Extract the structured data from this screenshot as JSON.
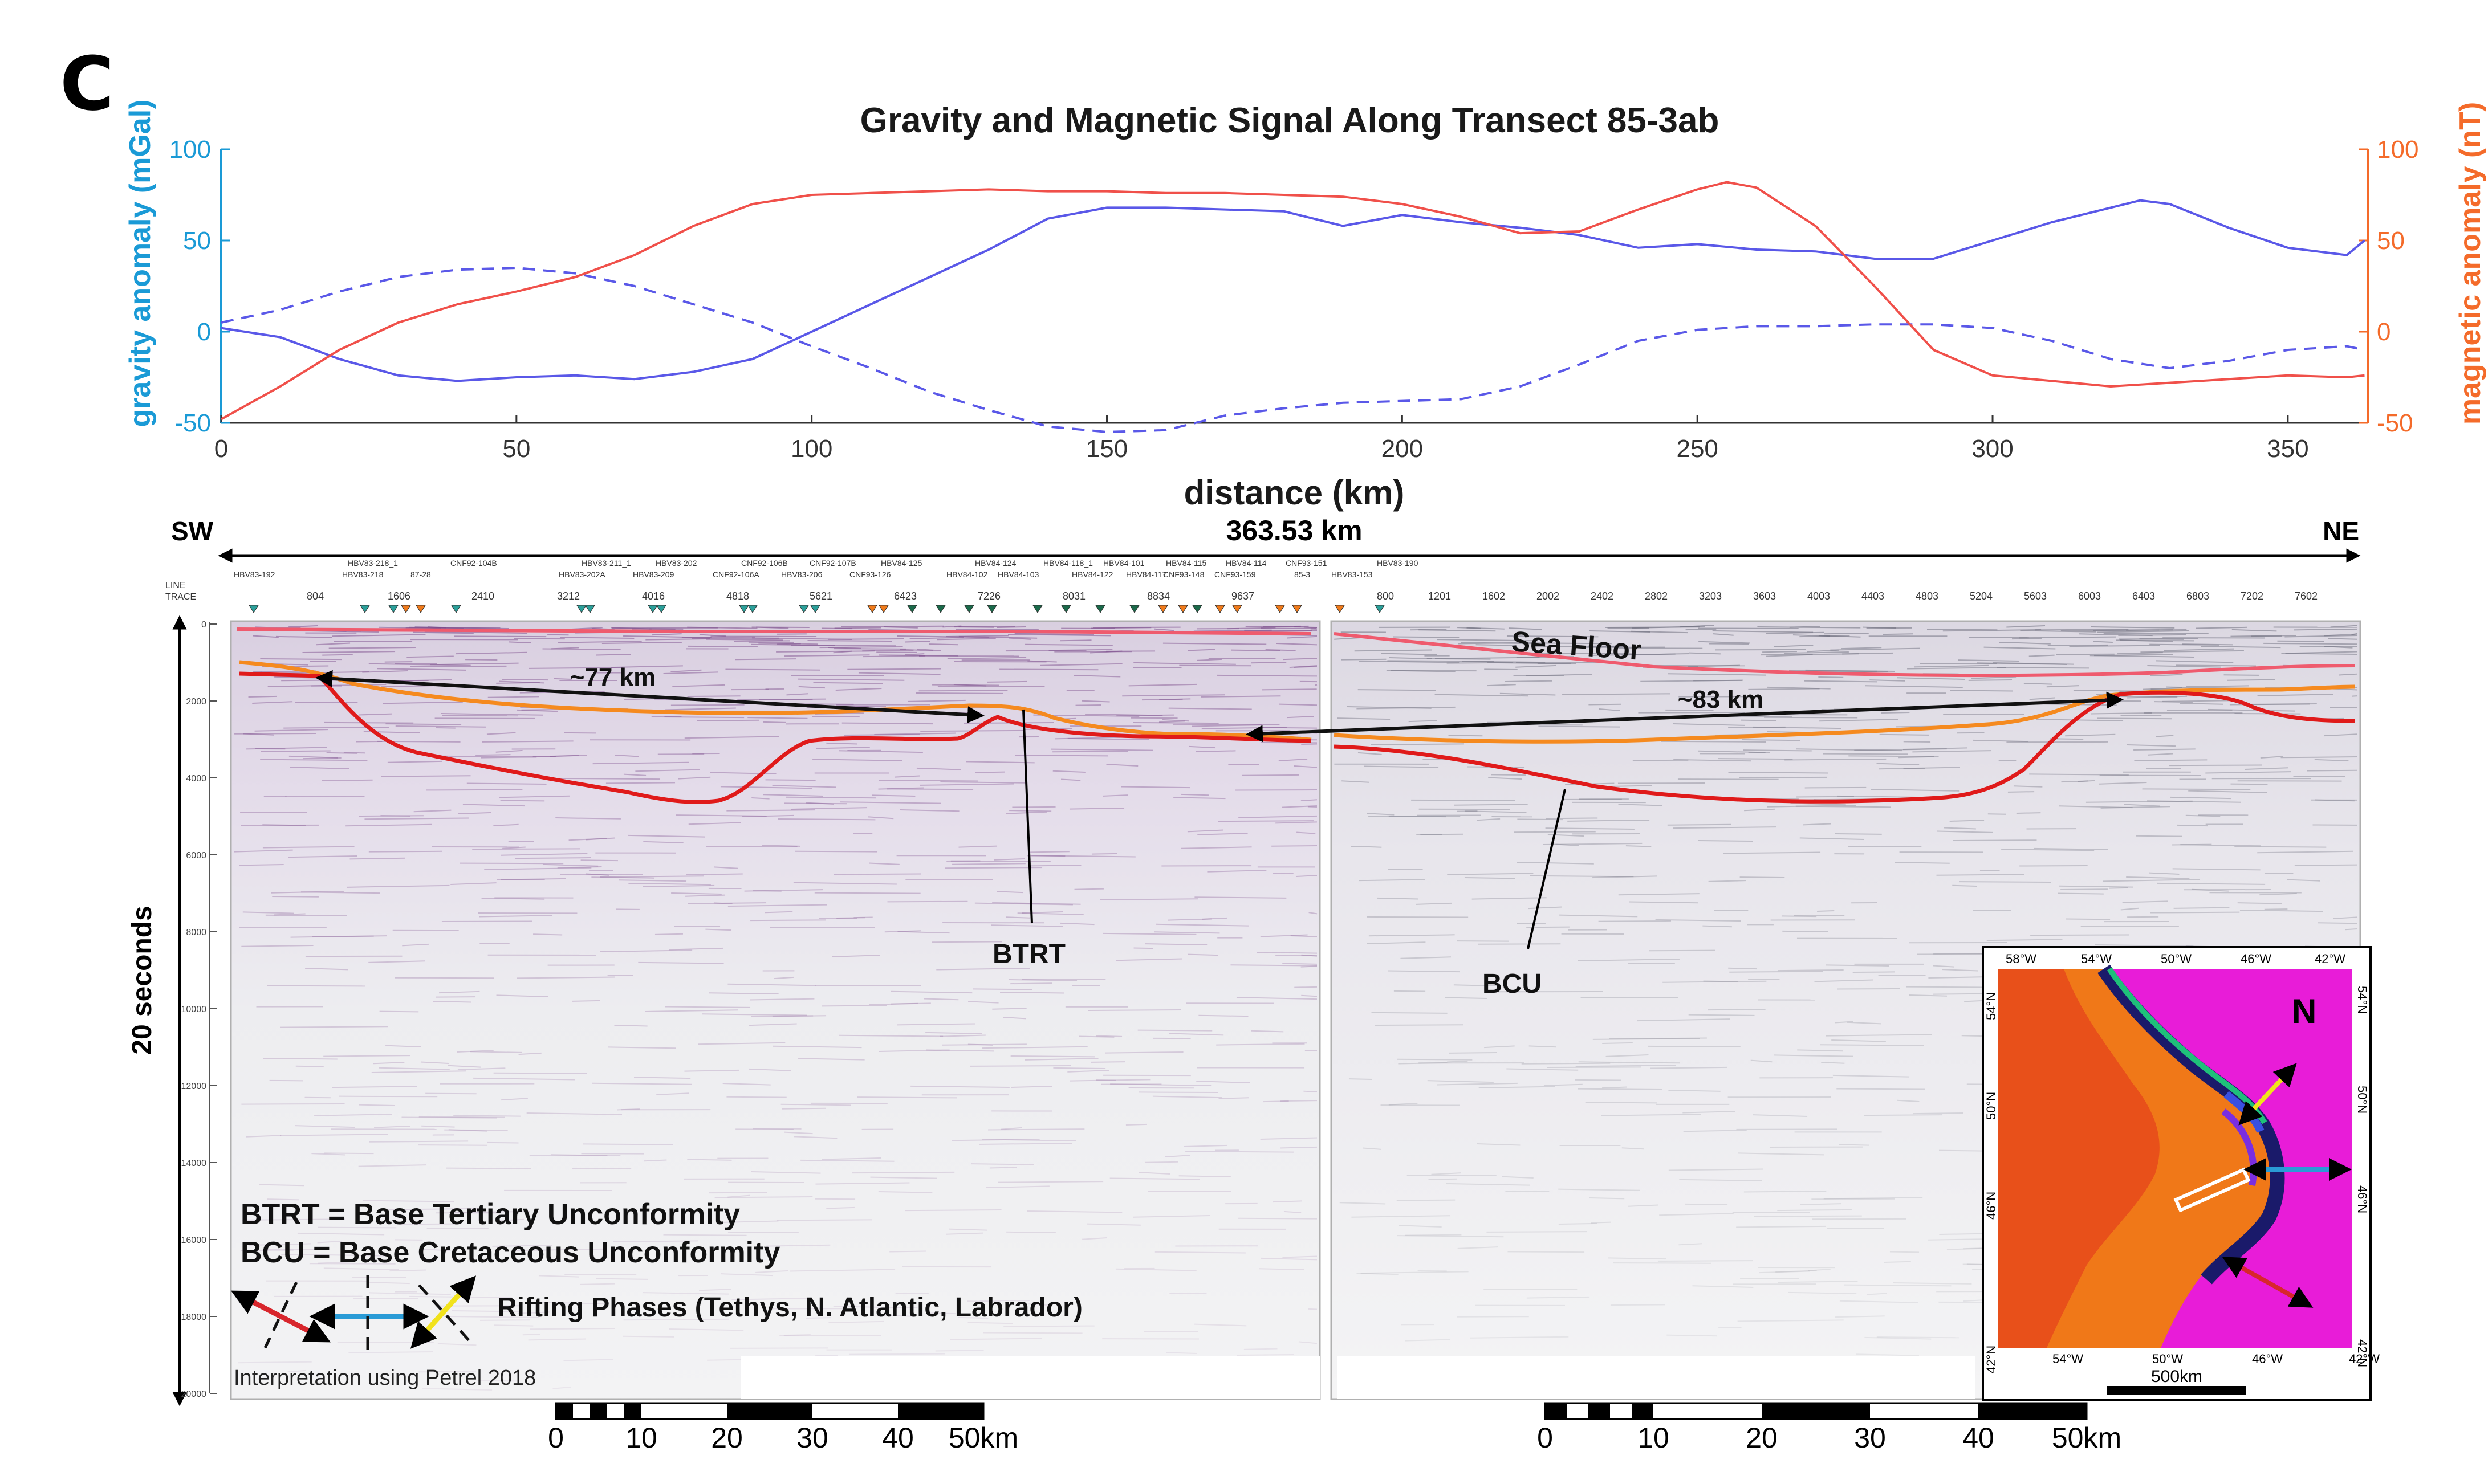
{
  "panel_label": "C",
  "colors": {
    "gravity": "#5a58e8",
    "gravity_axis": "#1a9ad6",
    "magnetic": "#f0504a",
    "magnetic_axis": "#f46b2a",
    "horizon_btrt": "#f58a1f",
    "horizon_bcu": "#e01a1a",
    "seafloor": "#ef5b6e",
    "rift_tethys": "#d8262c",
    "rift_atlantic": "#2a9bd6",
    "rift_labrador": "#f1e21c"
  },
  "chart_data": {
    "type": "line",
    "title": "Gravity and Magnetic Signal Along Transect 85-3ab",
    "xlabel": "distance (km)",
    "ylabel_left": "gravity anomaly (mGal)",
    "ylabel_right": "magnetic anomaly (nT)",
    "xlim": [
      0,
      363.53
    ],
    "ylim_left": [
      -50,
      100
    ],
    "ylim_right": [
      -50,
      100
    ],
    "x_ticks": [
      0,
      50,
      100,
      150,
      200,
      250,
      300,
      350
    ],
    "y_ticks_left": [
      -50,
      0,
      50,
      100
    ],
    "y_ticks_right": [
      -50,
      0,
      50,
      100
    ],
    "series": [
      {
        "name": "gravity anomaly",
        "axis": "left",
        "style": "solid",
        "color": "#5a58e8",
        "x": [
          0,
          10,
          20,
          30,
          40,
          50,
          60,
          70,
          80,
          90,
          100,
          110,
          120,
          130,
          140,
          150,
          160,
          170,
          180,
          190,
          200,
          210,
          220,
          230,
          240,
          250,
          260,
          270,
          280,
          290,
          300,
          310,
          320,
          325,
          330,
          340,
          350,
          360,
          363
        ],
        "values": [
          2,
          -3,
          -15,
          -24,
          -27,
          -25,
          -24,
          -26,
          -22,
          -15,
          0,
          15,
          30,
          45,
          62,
          68,
          68,
          67,
          66,
          58,
          64,
          60,
          57,
          53,
          46,
          48,
          45,
          44,
          40,
          40,
          50,
          60,
          68,
          72,
          70,
          57,
          46,
          42,
          50
        ]
      },
      {
        "name": "gravity (dashed)",
        "axis": "left",
        "style": "dashed",
        "color": "#5a58e8",
        "x": [
          0,
          10,
          20,
          30,
          40,
          50,
          60,
          70,
          80,
          90,
          100,
          110,
          120,
          130,
          140,
          150,
          160,
          170,
          180,
          190,
          200,
          210,
          220,
          230,
          240,
          250,
          260,
          270,
          280,
          290,
          300,
          310,
          320,
          330,
          340,
          350,
          360,
          363
        ],
        "values": [
          5,
          12,
          22,
          30,
          34,
          35,
          32,
          25,
          15,
          5,
          -8,
          -20,
          -33,
          -43,
          -52,
          -55,
          -54,
          -46,
          -42,
          -39,
          -38,
          -37,
          -30,
          -18,
          -5,
          1,
          3,
          3,
          4,
          4,
          2,
          -5,
          -15,
          -20,
          -16,
          -10,
          -8,
          -10
        ]
      },
      {
        "name": "magnetic anomaly",
        "axis": "right",
        "style": "solid",
        "color": "#f0504a",
        "x": [
          0,
          10,
          20,
          30,
          40,
          50,
          60,
          70,
          80,
          90,
          100,
          110,
          120,
          130,
          140,
          150,
          160,
          170,
          180,
          190,
          200,
          210,
          220,
          230,
          240,
          250,
          255,
          260,
          270,
          280,
          290,
          300,
          310,
          320,
          330,
          340,
          350,
          360,
          363
        ],
        "values": [
          -48,
          -30,
          -10,
          5,
          15,
          22,
          30,
          42,
          58,
          70,
          75,
          76,
          77,
          78,
          77,
          77,
          76,
          76,
          75,
          74,
          70,
          63,
          54,
          55,
          67,
          78,
          82,
          79,
          58,
          25,
          -10,
          -24,
          -27,
          -30,
          -28,
          -26,
          -24,
          -25,
          -24
        ]
      }
    ]
  },
  "section": {
    "sw_label": "SW",
    "ne_label": "NE",
    "distance_label": "363.53 km",
    "line_label": "LINE",
    "trace_label": "TRACE",
    "line_names_left_top": [
      "HBV83-218_1",
      "CNF92-104B",
      "HBV83-211_1",
      "HBV83-202",
      "CNF92-106B",
      "CNF92-107B",
      "HBV84-125",
      "HBV84-124",
      "HBV84-118_1",
      "HBV84-101",
      "HBV84-115",
      "HBV84-114",
      "CNF93-151",
      "HBV83-190"
    ],
    "line_names_left_bottom": [
      "HBV83-192",
      "HBV83-218",
      "87-28",
      "HBV83-202A",
      "HBV83-209",
      "CNF92-106A",
      "HBV83-206",
      "CNF93-126",
      "HBV84-102",
      "HBV84-103",
      "HBV84-122",
      "HBV84-117",
      "CNF93-148",
      "CNF93-159",
      "85-3",
      "HBV83-153"
    ],
    "trace_numbers_left": [
      "804",
      "1606",
      "2410",
      "3212",
      "4016",
      "4818",
      "5621",
      "6423",
      "7226",
      "8031",
      "8834",
      "9637"
    ],
    "trace_numbers_right": [
      "800",
      "1201",
      "1602",
      "2002",
      "2402",
      "2802",
      "3203",
      "3603",
      "4003",
      "4403",
      "4803",
      "5204",
      "5603",
      "6003",
      "6403",
      "6803",
      "7202",
      "7602"
    ],
    "depth_ticks": [
      "0",
      "2000",
      "4000",
      "6000",
      "8000",
      "10000",
      "12000",
      "14000",
      "16000",
      "18000",
      "20000"
    ],
    "vertical_axis_label": "20 seconds",
    "sea_floor_label": "Sea Floor",
    "span_left": "~77 km",
    "span_right": "~83 km",
    "btrt_label": "BTRT",
    "bcu_label": "BCU",
    "legend_btrt": "BTRT = Base Tertiary Unconformity",
    "legend_bcu": "BCU = Base Cretaceous Unconformity",
    "legend_rifting": "Rifting Phases (Tethys, N. Atlantic, Labrador)",
    "software_note": "Interpretation using Petrel 2018",
    "scale_ticks": [
      "0",
      "10",
      "20",
      "30",
      "40",
      "50km"
    ]
  },
  "inset_map": {
    "lon_labels": [
      "58°W",
      "54°W",
      "50°W",
      "46°W",
      "42°W"
    ],
    "lon_labels_bottom": [
      "54°W",
      "50°W",
      "46°W",
      "42°W"
    ],
    "lat_labels": [
      "54°N",
      "50°N",
      "46°N",
      "42°N"
    ],
    "north_label": "N",
    "scale_label": "500km"
  }
}
